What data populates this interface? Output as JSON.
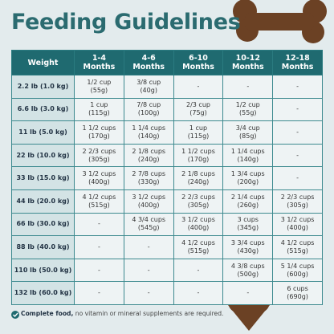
{
  "header": {
    "title": "Feeding Guidelines"
  },
  "table": {
    "columns": [
      [
        "Weight"
      ],
      [
        "1-4",
        "Months"
      ],
      [
        "4-6",
        "Months"
      ],
      [
        "6-10",
        "Months"
      ],
      [
        "10-12",
        "Months"
      ],
      [
        "12-18",
        "Months"
      ]
    ],
    "rows": [
      [
        [
          "2.2 lb (1.0 kg)"
        ],
        [
          "1/2 cup",
          "(55g)"
        ],
        [
          "3/8 cup",
          "(40g)"
        ],
        [
          "-"
        ],
        [
          "-"
        ],
        [
          "-"
        ]
      ],
      [
        [
          "6.6 lb (3.0 kg)"
        ],
        [
          "1 cup",
          "(115g)"
        ],
        [
          "7/8 cup",
          "(100g)"
        ],
        [
          "2/3 cup",
          "(75g)"
        ],
        [
          "1/2 cup",
          "(55g)"
        ],
        [
          "-"
        ]
      ],
      [
        [
          "11 lb (5.0 kg)"
        ],
        [
          "1 1/2 cups",
          "(170g)"
        ],
        [
          "1 1/4 cups",
          "(140g)"
        ],
        [
          "1 cup",
          "(115g)"
        ],
        [
          "3/4 cup",
          "(85g)"
        ],
        [
          "-"
        ]
      ],
      [
        [
          "22 lb (10.0 kg)"
        ],
        [
          "2 2/3 cups",
          "(305g)"
        ],
        [
          "2 1/8 cups",
          "(240g)"
        ],
        [
          "1 1/2 cups",
          "(170g)"
        ],
        [
          "1 1/4 cups",
          "(140g)"
        ],
        [
          "-"
        ]
      ],
      [
        [
          "33 lb (15.0 kg)"
        ],
        [
          "3 1/2 cups",
          "(400g)"
        ],
        [
          "2 7/8 cups",
          "(330g)"
        ],
        [
          "2 1/8 cups",
          "(240g)"
        ],
        [
          "1 3/4 cups",
          "(200g)"
        ],
        [
          "-"
        ]
      ],
      [
        [
          "44 lb (20.0 kg)"
        ],
        [
          "4 1/2 cups",
          "(515g)"
        ],
        [
          "3 1/2 cups",
          "(400g)"
        ],
        [
          "2 2/3 cups",
          "(305g)"
        ],
        [
          "2 1/4 cups",
          "(260g)"
        ],
        [
          "2 2/3 cups",
          "(305g)"
        ]
      ],
      [
        [
          "66 lb (30.0 kg)"
        ],
        [
          "-"
        ],
        [
          "4 3/4 cups",
          "(545g)"
        ],
        [
          "3 1/2 cups",
          "(400g)"
        ],
        [
          "3 cups",
          "(345g)"
        ],
        [
          "3 1/2 cups",
          "(400g)"
        ]
      ],
      [
        [
          "88 lb (40.0 kg)"
        ],
        [
          "-"
        ],
        [
          "-"
        ],
        [
          "4 1/2 cups",
          "(515g)"
        ],
        [
          "3 3/4 cups",
          "(430g)"
        ],
        [
          "4 1/2 cups",
          "(515g)"
        ]
      ],
      [
        [
          "110 lb (50.0 kg)"
        ],
        [
          "-"
        ],
        [
          "-"
        ],
        [
          "-"
        ],
        [
          "4 3/8 cups",
          "(500g)"
        ],
        [
          "5 1/4 cups",
          "(600g)"
        ]
      ],
      [
        [
          "132 lb (60.0 kg)"
        ],
        [
          "-"
        ],
        [
          "-"
        ],
        [
          "-"
        ],
        [
          "-"
        ],
        [
          "6 cups",
          "(690g)"
        ]
      ]
    ]
  },
  "footer": {
    "bold": "Complete food,",
    "text": " no vitamin or mineral supplements are required."
  }
}
